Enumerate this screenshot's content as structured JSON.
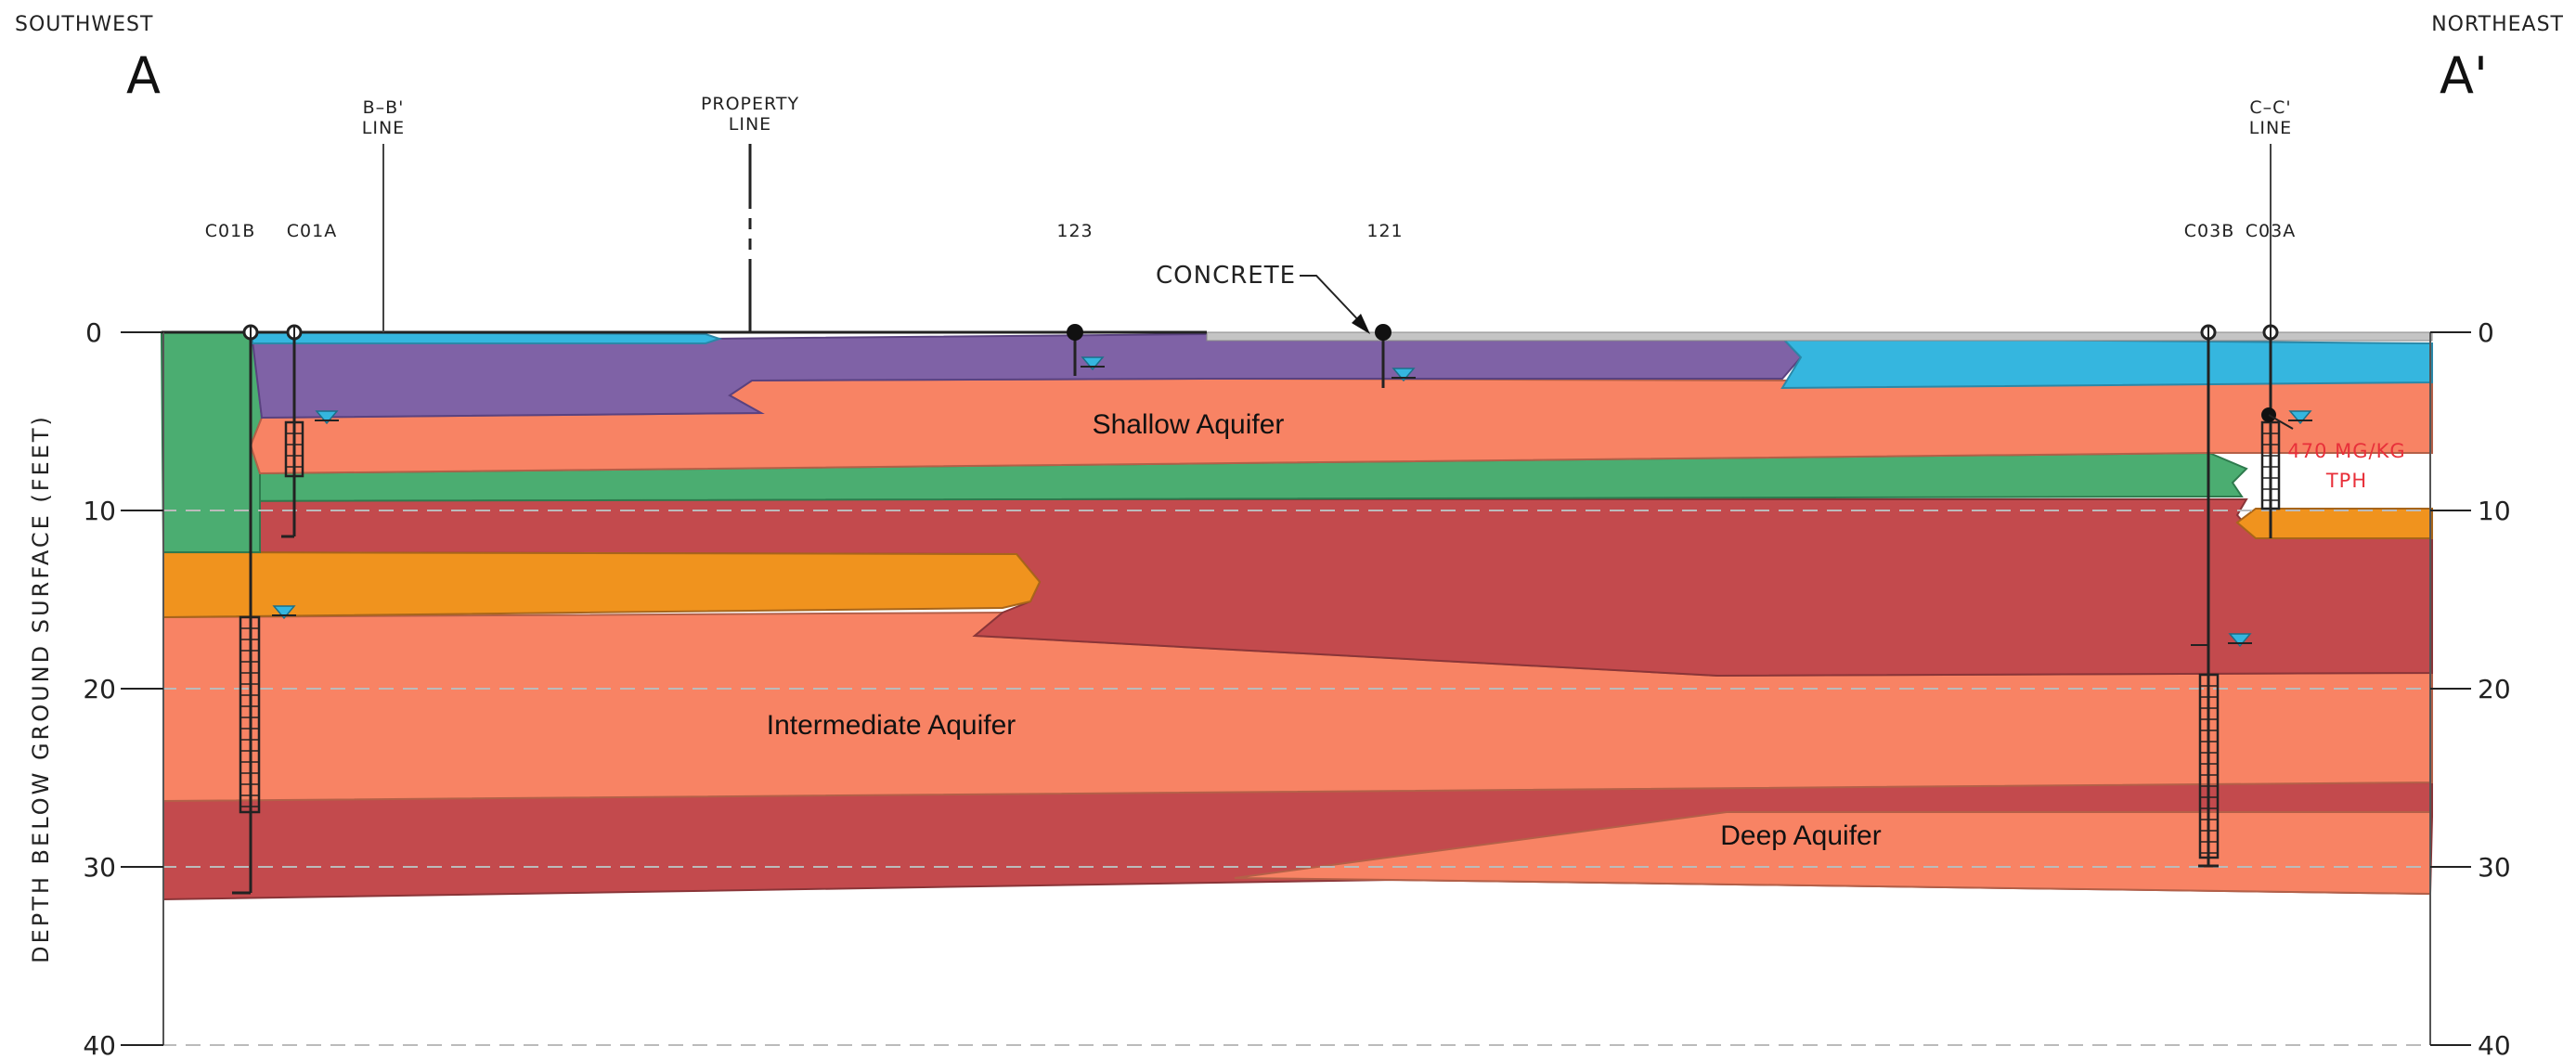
{
  "directions": {
    "left": "SOUTHWEST",
    "right": "NORTHEAST"
  },
  "section": {
    "start": "A",
    "end": "A'"
  },
  "y_axis": {
    "label": "DEPTH BELOW GROUND SURFACE (FEET)",
    "ticks": [
      "0",
      "10",
      "20",
      "30",
      "40"
    ]
  },
  "markers": {
    "bb_line": [
      "B–B'",
      "LINE"
    ],
    "property_line": [
      "PROPERTY",
      "LINE"
    ],
    "cc_line": [
      "C–C'",
      "LINE"
    ]
  },
  "wells": [
    "C01B",
    "C01A",
    "123",
    "121",
    "C03B",
    "C03A"
  ],
  "annotations": {
    "concrete": "CONCRETE",
    "sample_result": [
      "470 MG/KG",
      "TPH"
    ]
  },
  "aquifers": {
    "shallow": "Shallow Aquifer",
    "intermediate": "Intermediate Aquifer",
    "deep": "Deep Aquifer"
  },
  "colors": {
    "sand_salmon": "#f88364",
    "clay_red": "#c34a4d",
    "silt_green": "#4bad71",
    "gravel_orange": "#f0931e",
    "purple_fill": "#7f62a6",
    "blue_fill": "#35b6df",
    "concrete_gray": "#c4c4c4",
    "highlight_red": "#e8303a"
  }
}
